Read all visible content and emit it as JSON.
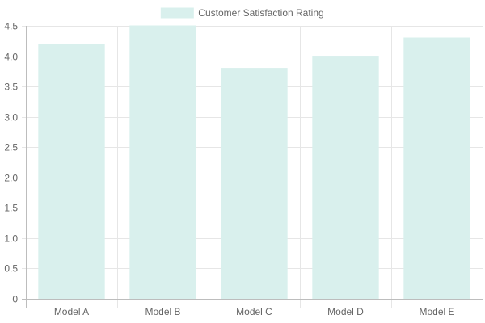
{
  "chart_data": {
    "type": "bar",
    "categories": [
      "Model A",
      "Model B",
      "Model C",
      "Model D",
      "Model E"
    ],
    "series": [
      {
        "name": "Customer Satisfaction Rating",
        "values": [
          4.2,
          4.5,
          3.8,
          4.0,
          4.3
        ],
        "color": "#d9f0ed",
        "border_color": "#d9f0ed"
      }
    ],
    "ylim": [
      0,
      4.5
    ],
    "yticks": [
      "0",
      "0.5",
      "1.0",
      "1.5",
      "2.0",
      "2.5",
      "3.0",
      "3.5",
      "4.0",
      "4.5"
    ],
    "grid": true,
    "legend": "top-center"
  }
}
